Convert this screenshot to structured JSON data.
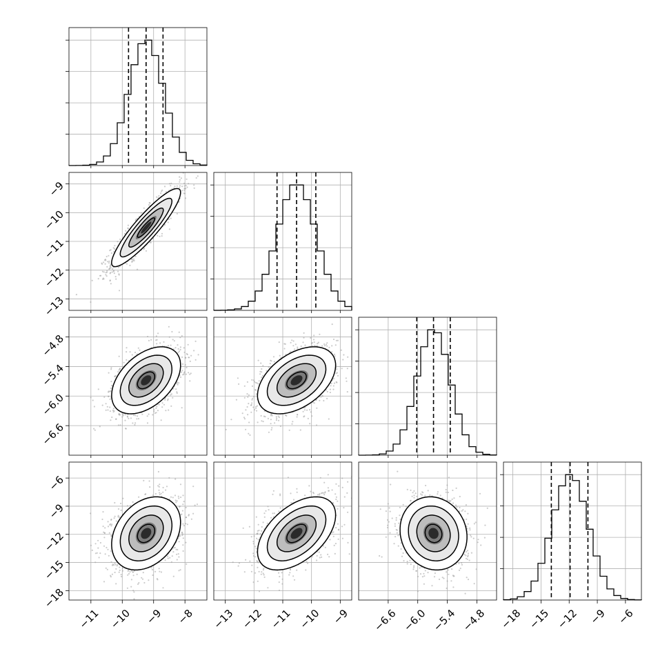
{
  "chart_data": {
    "type": "corner",
    "title": "",
    "grid": true,
    "colors": {
      "hist_line": "#000000",
      "quantile_line": "#000000",
      "grid": "#b0b0b0",
      "scatter": "#a0a0a0",
      "density_max": "#000000",
      "contour": "#000000"
    },
    "parameters": [
      {
        "index": 0,
        "range": [
          -11.7,
          -7.3
        ],
        "ticks": [
          -11,
          -10,
          -9,
          -8
        ],
        "tick_labels": [
          "−11",
          "−10",
          "−9",
          "−8"
        ],
        "quantiles": [
          -9.8,
          -9.24,
          -8.7
        ],
        "mean": -9.24,
        "sd": 0.55
      },
      {
        "index": 1,
        "range": [
          -13.4,
          -8.6
        ],
        "ticks": [
          -13,
          -12,
          -11,
          -10,
          -9
        ],
        "tick_labels": [
          "−13",
          "−12",
          "−11",
          "−10",
          "−9"
        ],
        "quantiles": [
          -11.2,
          -10.52,
          -9.85
        ],
        "mean": -10.52,
        "sd": 0.68
      },
      {
        "index": 2,
        "range": [
          -7.2,
          -4.4
        ],
        "ticks": [
          -6.6,
          -6.0,
          -5.4,
          -4.8
        ],
        "tick_labels": [
          "−6.6",
          "−6.0",
          "−5.4",
          "−4.8"
        ],
        "quantiles": [
          -6.02,
          -5.68,
          -5.34
        ],
        "mean": -5.68,
        "sd": 0.34
      },
      {
        "index": 3,
        "range": [
          -19.0,
          -4.3
        ],
        "ticks": [
          -18,
          -15,
          -12,
          -9,
          -6
        ],
        "tick_labels": [
          "−18",
          "−15",
          "−12",
          "−9",
          "−6"
        ],
        "quantiles": [
          -13.9,
          -11.9,
          -10.0
        ],
        "mean": -11.9,
        "sd": 1.95
      }
    ],
    "correlations": [
      [
        1.0,
        0.9,
        0.45,
        0.3
      ],
      [
        0.9,
        1.0,
        0.45,
        0.5
      ],
      [
        0.45,
        0.45,
        1.0,
        -0.1
      ],
      [
        0.3,
        0.5,
        -0.1,
        1.0
      ]
    ],
    "histogram_bins": 20,
    "contour_levels_sigma": [
      0.5,
      1.0,
      1.5,
      2.0
    ],
    "scatter_points_per_panel": 1400
  }
}
